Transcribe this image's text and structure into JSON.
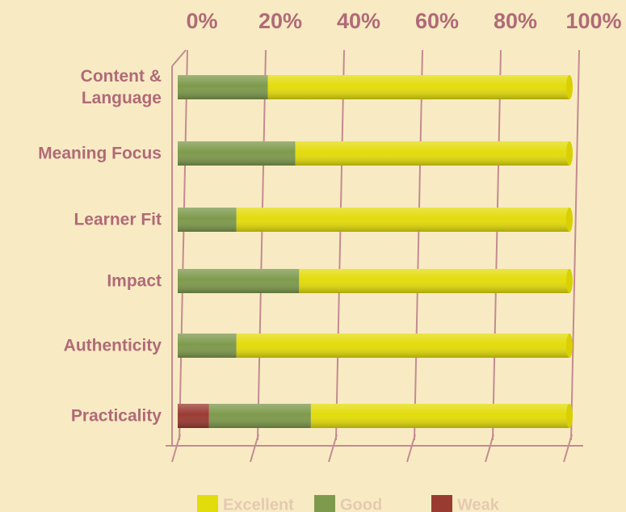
{
  "chart_data": {
    "type": "stacked_barh",
    "categories": [
      "Content & Language",
      "Meaning Focus",
      "Learner Fit",
      "Impact",
      "Authenticity",
      "Practicality"
    ],
    "series": [
      {
        "name": "Excellent",
        "color": "#e3dc0c",
        "values": [
          77,
          70,
          85,
          69,
          85,
          66
        ]
      },
      {
        "name": "Good",
        "color": "#7e9a4c",
        "values": [
          23,
          30,
          15,
          31,
          15,
          26
        ]
      },
      {
        "name": "Weak",
        "color": "#9a3b32",
        "values": [
          0,
          0,
          0,
          0,
          0,
          8
        ]
      }
    ],
    "xlim": [
      0,
      100
    ],
    "xticks": [
      {
        "value": 0,
        "label": "0%"
      },
      {
        "value": 20,
        "label": "20%"
      },
      {
        "value": 40,
        "label": "40%"
      },
      {
        "value": 60,
        "label": "60%"
      },
      {
        "value": 80,
        "label": "80%"
      },
      {
        "value": 100,
        "label": "100%"
      }
    ],
    "grid": true
  }
}
